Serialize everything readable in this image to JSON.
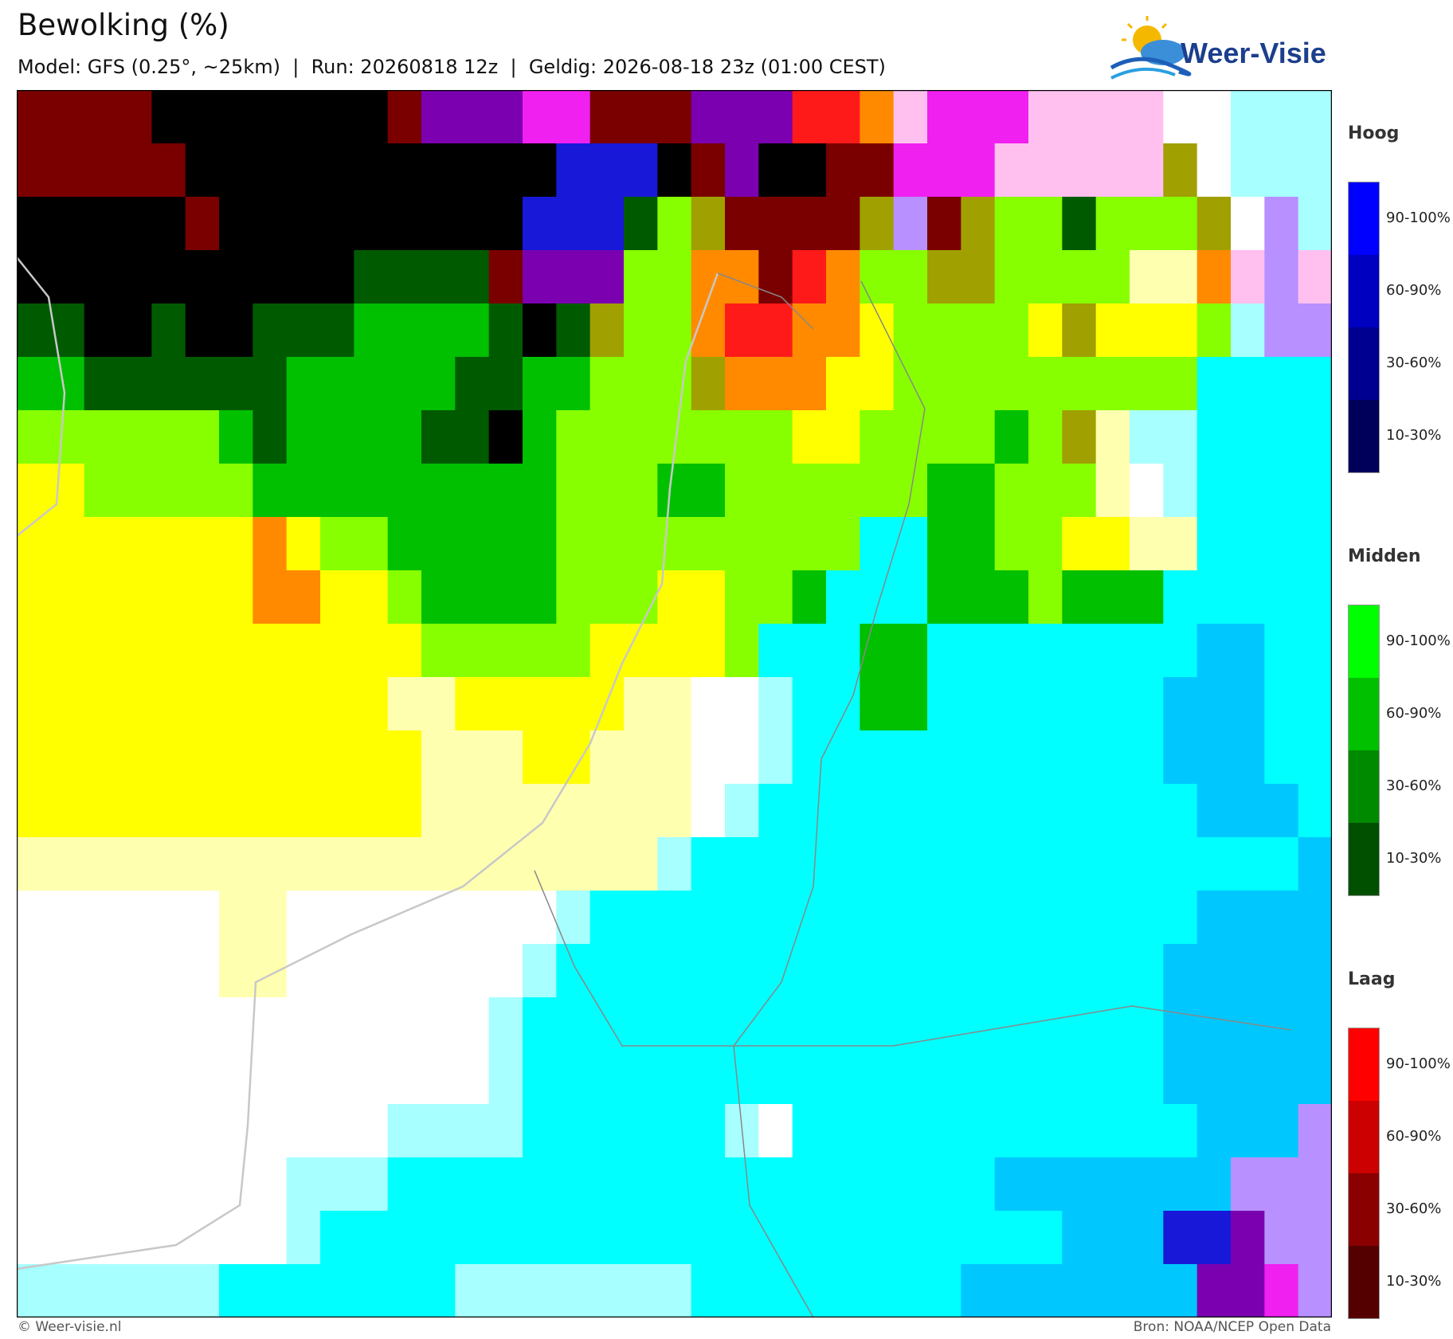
{
  "header": {
    "title": "Bewolking (%)",
    "subtitle": "Model: GFS (0.25°, ~25km)  |  Run: 20260818 12z  |  Geldig: 2026-08-18 23z (01:00 CEST)",
    "logo": "Weer-Visie"
  },
  "legend": [
    {
      "title": "Hoog",
      "labels": [
        "90-100%",
        "60-90%",
        "30-60%",
        "10-30%"
      ]
    },
    {
      "title": "Midden",
      "labels": [
        "90-100%",
        "60-90%",
        "30-60%",
        "10-30%"
      ]
    },
    {
      "title": "Laag",
      "labels": [
        "90-100%",
        "60-90%",
        "30-60%",
        "10-30%"
      ]
    }
  ],
  "footer": {
    "left": "© Weer-visie.nl",
    "right": "Bron: NOAA/NCEP Open Data"
  }
}
